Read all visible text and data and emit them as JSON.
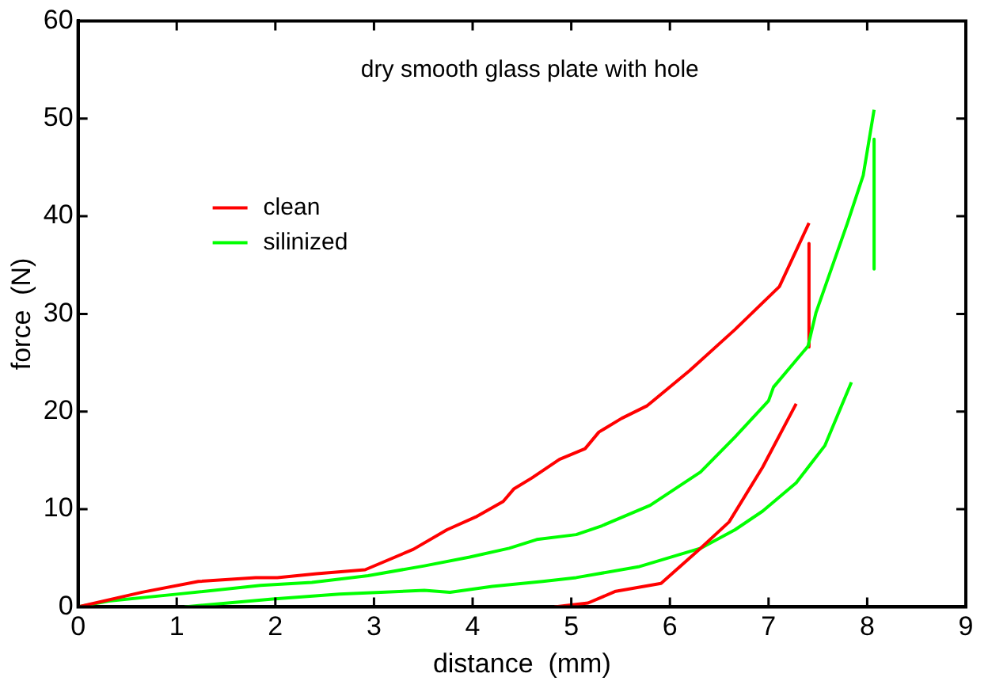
{
  "chart_data": {
    "type": "line",
    "title": "dry smooth glass plate with hole",
    "xlabel": "distance  (mm)",
    "ylabel": "force  (N)",
    "xlim": [
      0,
      9
    ],
    "xticks": [
      0,
      1,
      2,
      3,
      4,
      5,
      6,
      7,
      8,
      9
    ],
    "ylim": [
      0,
      60
    ],
    "yticks": [
      0,
      10,
      20,
      30,
      40,
      50,
      60
    ],
    "grid": false,
    "legend": "top left",
    "marker": "none",
    "series": [
      {
        "name": "clean",
        "color": "#ff0000",
        "x": [
          0,
          0.65,
          1.22,
          1.8,
          2.02,
          2.42,
          2.91,
          3.4,
          3.74,
          4.03,
          4.31,
          4.42,
          4.6,
          4.88,
          5.14,
          5.28,
          5.51,
          5.77,
          6.2,
          6.66,
          7.11,
          7.41
        ],
        "values": [
          0,
          1.5,
          2.6,
          3.0,
          3.0,
          3.4,
          3.8,
          5.9,
          7.9,
          9.2,
          10.8,
          12.1,
          13.2,
          15.1,
          16.2,
          17.9,
          19.3,
          20.6,
          24.2,
          28.4,
          32.8,
          39.3
        ]
      },
      {
        "name": "silinized",
        "color": "#00ff00",
        "x": [
          0,
          0.31,
          1.0,
          1.85,
          2.37,
          2.94,
          3.51,
          3.97,
          4.37,
          4.65,
          5.05,
          5.31,
          5.8,
          6.31,
          6.66,
          7.0,
          7.05,
          7.4,
          7.48,
          7.8,
          7.96,
          8.07
        ],
        "values": [
          0,
          0.6,
          1.3,
          2.2,
          2.5,
          3.2,
          4.2,
          5.1,
          6.0,
          6.9,
          7.4,
          8.3,
          10.4,
          13.8,
          17.4,
          21.1,
          22.5,
          26.7,
          30.1,
          39.3,
          44.2,
          50.9
        ]
      },
      {
        "color": "#ff0000",
        "x": [
          7.41,
          7.41
        ],
        "values": [
          37.2,
          26.6
        ]
      },
      {
        "color": "#00ff00",
        "x": [
          8.07,
          8.07
        ],
        "values": [
          47.9,
          34.6
        ]
      },
      {
        "color": "#ff0000",
        "x": [
          4.83,
          5.17,
          5.45,
          5.91,
          6.31,
          6.6,
          6.94,
          7.28
        ],
        "values": [
          0,
          0.4,
          1.6,
          2.4,
          6.0,
          8.7,
          14.3,
          20.8
        ]
      },
      {
        "color": "#00ff00",
        "x": [
          1.08,
          1.97,
          2.65,
          3.51,
          3.77,
          4.2,
          4.71,
          5.05,
          5.68,
          6.31,
          6.66,
          6.94,
          7.28,
          7.57,
          7.84
        ],
        "values": [
          0,
          0.8,
          1.3,
          1.7,
          1.5,
          2.1,
          2.6,
          3.0,
          4.1,
          6.0,
          7.9,
          9.8,
          12.7,
          16.5,
          23.0
        ]
      }
    ]
  }
}
